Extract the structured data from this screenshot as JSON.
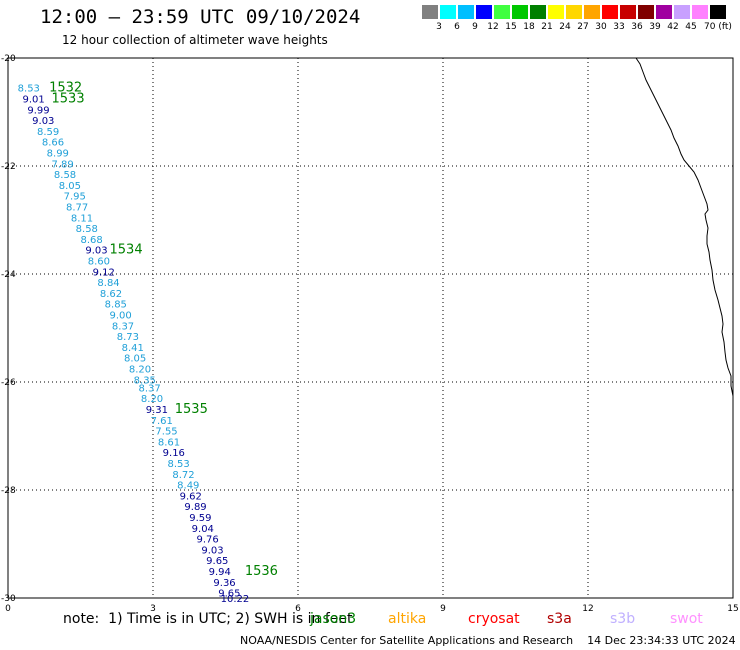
{
  "header": {
    "title": "12:00 – 23:59 UTC 09/10/2024",
    "subtitle": "12 hour collection of altimeter wave heights"
  },
  "colorbar": {
    "colors": [
      "#808080",
      "#00ffff",
      "#00bfff",
      "#0000ff",
      "#40ff40",
      "#00c800",
      "#008000",
      "#ffff00",
      "#ffd700",
      "#ffa500",
      "#ff0000",
      "#c80000",
      "#800000",
      "#a000a0",
      "#c8a0ff",
      "#ff80ff",
      "#000000"
    ],
    "labels": [
      "3",
      "6",
      "9",
      "12",
      "15",
      "18",
      "21",
      "24",
      "27",
      "30",
      "33",
      "36",
      "39",
      "42",
      "45",
      "70 (ft)"
    ]
  },
  "axes": {
    "x_ticks": [
      "0",
      "3",
      "6",
      "9",
      "12",
      "15"
    ],
    "y_ticks": [
      "-20",
      "-22",
      "-24",
      "-26",
      "-28",
      "-30"
    ]
  },
  "colors": {
    "light": "#20a0d8",
    "dark": "#000090",
    "label": "#008000"
  },
  "track_points": [
    {
      "v": "8.53",
      "lon": 0.2,
      "lat": -20.55,
      "c": "light"
    },
    {
      "v": "9.01",
      "lon": 0.3,
      "lat": -20.75,
      "c": "dark"
    },
    {
      "v": "9.99",
      "lon": 0.4,
      "lat": -20.95,
      "c": "dark"
    },
    {
      "v": "9.03",
      "lon": 0.5,
      "lat": -21.15,
      "c": "dark"
    },
    {
      "v": "8.59",
      "lon": 0.6,
      "lat": -21.35,
      "c": "light"
    },
    {
      "v": "8.66",
      "lon": 0.7,
      "lat": -21.55,
      "c": "light"
    },
    {
      "v": "8.99",
      "lon": 0.8,
      "lat": -21.75,
      "c": "light"
    },
    {
      "v": "7.89",
      "lon": 0.9,
      "lat": -21.95,
      "c": "light"
    },
    {
      "v": "8.58",
      "lon": 0.95,
      "lat": -22.15,
      "c": "light"
    },
    {
      "v": "8.05",
      "lon": 1.05,
      "lat": -22.35,
      "c": "light"
    },
    {
      "v": "7.95",
      "lon": 1.15,
      "lat": -22.55,
      "c": "light"
    },
    {
      "v": "8.77",
      "lon": 1.2,
      "lat": -22.75,
      "c": "light"
    },
    {
      "v": "8.11",
      "lon": 1.3,
      "lat": -22.95,
      "c": "light"
    },
    {
      "v": "8.58",
      "lon": 1.4,
      "lat": -23.15,
      "c": "light"
    },
    {
      "v": "8.68",
      "lon": 1.5,
      "lat": -23.35,
      "c": "light"
    },
    {
      "v": "9.03",
      "lon": 1.6,
      "lat": -23.55,
      "c": "dark"
    },
    {
      "v": "8.60",
      "lon": 1.65,
      "lat": -23.75,
      "c": "light"
    },
    {
      "v": "9.12",
      "lon": 1.75,
      "lat": -23.95,
      "c": "dark"
    },
    {
      "v": "8.84",
      "lon": 1.85,
      "lat": -24.15,
      "c": "light"
    },
    {
      "v": "8.62",
      "lon": 1.9,
      "lat": -24.35,
      "c": "light"
    },
    {
      "v": "8.85",
      "lon": 2.0,
      "lat": -24.55,
      "c": "light"
    },
    {
      "v": "9.00",
      "lon": 2.1,
      "lat": -24.75,
      "c": "light"
    },
    {
      "v": "8.37",
      "lon": 2.15,
      "lat": -24.95,
      "c": "light"
    },
    {
      "v": "8.73",
      "lon": 2.25,
      "lat": -25.15,
      "c": "light"
    },
    {
      "v": "8.41",
      "lon": 2.35,
      "lat": -25.35,
      "c": "light"
    },
    {
      "v": "8.05",
      "lon": 2.4,
      "lat": -25.55,
      "c": "light"
    },
    {
      "v": "8.20",
      "lon": 2.5,
      "lat": -25.75,
      "c": "light"
    },
    {
      "v": "8.35",
      "lon": 2.6,
      "lat": -25.95,
      "c": "light"
    },
    {
      "v": "8.37",
      "lon": 2.7,
      "lat": -26.1,
      "c": "light"
    },
    {
      "v": "8.20",
      "lon": 2.75,
      "lat": -26.3,
      "c": "light"
    },
    {
      "v": "9.31",
      "lon": 2.85,
      "lat": -26.5,
      "c": "dark"
    },
    {
      "v": "7.61",
      "lon": 2.95,
      "lat": -26.7,
      "c": "light"
    },
    {
      "v": "7.55",
      "lon": 3.05,
      "lat": -26.9,
      "c": "light"
    },
    {
      "v": "8.61",
      "lon": 3.1,
      "lat": -27.1,
      "c": "light"
    },
    {
      "v": "9.16",
      "lon": 3.2,
      "lat": -27.3,
      "c": "dark"
    },
    {
      "v": "8.53",
      "lon": 3.3,
      "lat": -27.5,
      "c": "light"
    },
    {
      "v": "8.72",
      "lon": 3.4,
      "lat": -27.7,
      "c": "light"
    },
    {
      "v": "8.49",
      "lon": 3.5,
      "lat": -27.9,
      "c": "light"
    },
    {
      "v": "9.62",
      "lon": 3.55,
      "lat": -28.1,
      "c": "dark"
    },
    {
      "v": "9.89",
      "lon": 3.65,
      "lat": -28.3,
      "c": "dark"
    },
    {
      "v": "9.59",
      "lon": 3.75,
      "lat": -28.5,
      "c": "dark"
    },
    {
      "v": "9.04",
      "lon": 3.8,
      "lat": -28.7,
      "c": "dark"
    },
    {
      "v": "9.76",
      "lon": 3.9,
      "lat": -28.9,
      "c": "dark"
    },
    {
      "v": "9.03",
      "lon": 4.0,
      "lat": -29.1,
      "c": "dark"
    },
    {
      "v": "9.65",
      "lon": 4.1,
      "lat": -29.3,
      "c": "dark"
    },
    {
      "v": "9.94",
      "lon": 4.15,
      "lat": -29.5,
      "c": "dark"
    },
    {
      "v": "9.36",
      "lon": 4.25,
      "lat": -29.7,
      "c": "dark"
    },
    {
      "v": "9.65",
      "lon": 4.35,
      "lat": -29.9,
      "c": "dark"
    },
    {
      "v": "10.22",
      "lon": 4.4,
      "lat": -30.0,
      "c": "dark"
    }
  ],
  "time_labels": [
    {
      "t": "1532",
      "lon": 0.85,
      "lat": -20.55
    },
    {
      "t": "1533",
      "lon": 0.9,
      "lat": -20.75
    },
    {
      "t": "1534",
      "lon": 2.1,
      "lat": -23.55
    },
    {
      "t": "1535",
      "lon": 3.45,
      "lat": -26.5
    },
    {
      "t": "1536",
      "lon": 4.9,
      "lat": -29.5
    }
  ],
  "note": "note:  1) Time is in UTC; 2) SWH is in feet",
  "satellites": [
    {
      "name": "jason3",
      "color": "#008000"
    },
    {
      "name": "altika",
      "color": "#ffa500"
    },
    {
      "name": "cryosat",
      "color": "#ff0000"
    },
    {
      "name": "s3a",
      "color": "#b00000"
    },
    {
      "name": "s3b",
      "color": "#c0b0ff"
    },
    {
      "name": "swot",
      "color": "#ff90ff"
    }
  ],
  "footer": "NOAA/NESDIS Center for Satellite Applications and Research    14 Dec 23:34:33 UTC 2024"
}
